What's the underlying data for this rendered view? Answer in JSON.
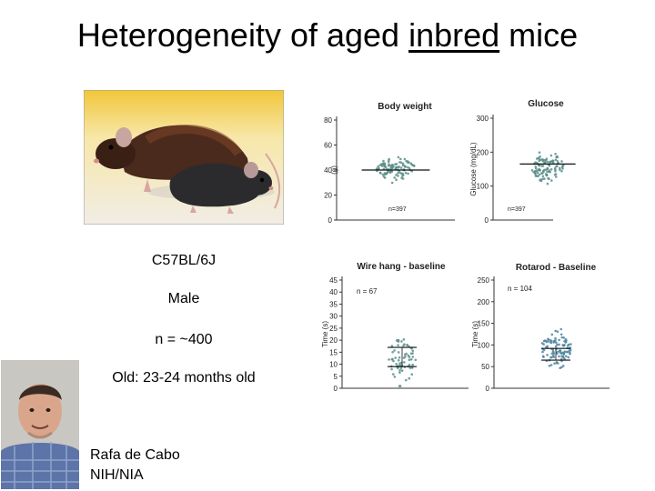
{
  "slide": {
    "title_prefix": "Heterogeneity of aged ",
    "title_underlined": "inbred",
    "title_suffix": " mice"
  },
  "study": {
    "strain": "C57BL/6J",
    "sex": "Male",
    "n": "n = ~400",
    "age": "Old: 23-24 months old"
  },
  "credit": {
    "name": "Rafa de Cabo",
    "institution": "NIH/NIA"
  },
  "chart_data": [
    {
      "type": "scatter",
      "title": "Body weight",
      "ylabel": "(g)",
      "ylim": [
        0,
        80
      ],
      "yticks": [
        "0",
        "20",
        "40",
        "60",
        "80"
      ],
      "n_label": "n=397",
      "median": 40,
      "center": 41,
      "spread": 7,
      "count": 110,
      "seed": 3
    },
    {
      "type": "scatter",
      "title": "Glucose",
      "ylabel": "Glucose (mg/dL)",
      "ylim": [
        0,
        300
      ],
      "yticks": [
        "0",
        "100",
        "200",
        "300"
      ],
      "n_label": "n=397",
      "median": 165,
      "center": 158,
      "spread": 38,
      "count": 110,
      "seed": 7
    },
    {
      "type": "scatter",
      "title": "Wire hang - baseline",
      "ylabel": "Time (s)",
      "ylim": [
        0,
        45
      ],
      "yticks": [
        "0",
        "5",
        "10",
        "15",
        "20",
        "25",
        "30",
        "35",
        "40",
        "45"
      ],
      "n_label": "n = 67",
      "mean": 17,
      "sd_low": 9,
      "center": 12,
      "spread": 9,
      "count": 67,
      "seed": 11
    },
    {
      "type": "scatter",
      "title": "Rotarod - Baseline",
      "ylabel": "Time (s)",
      "ylim": [
        0,
        250
      ],
      "yticks": [
        "0",
        "50",
        "100",
        "150",
        "200",
        "250"
      ],
      "n_label": "n = 104",
      "mean": 92,
      "sd_low": 65,
      "center": 95,
      "spread": 40,
      "count": 104,
      "seed": 19
    }
  ]
}
